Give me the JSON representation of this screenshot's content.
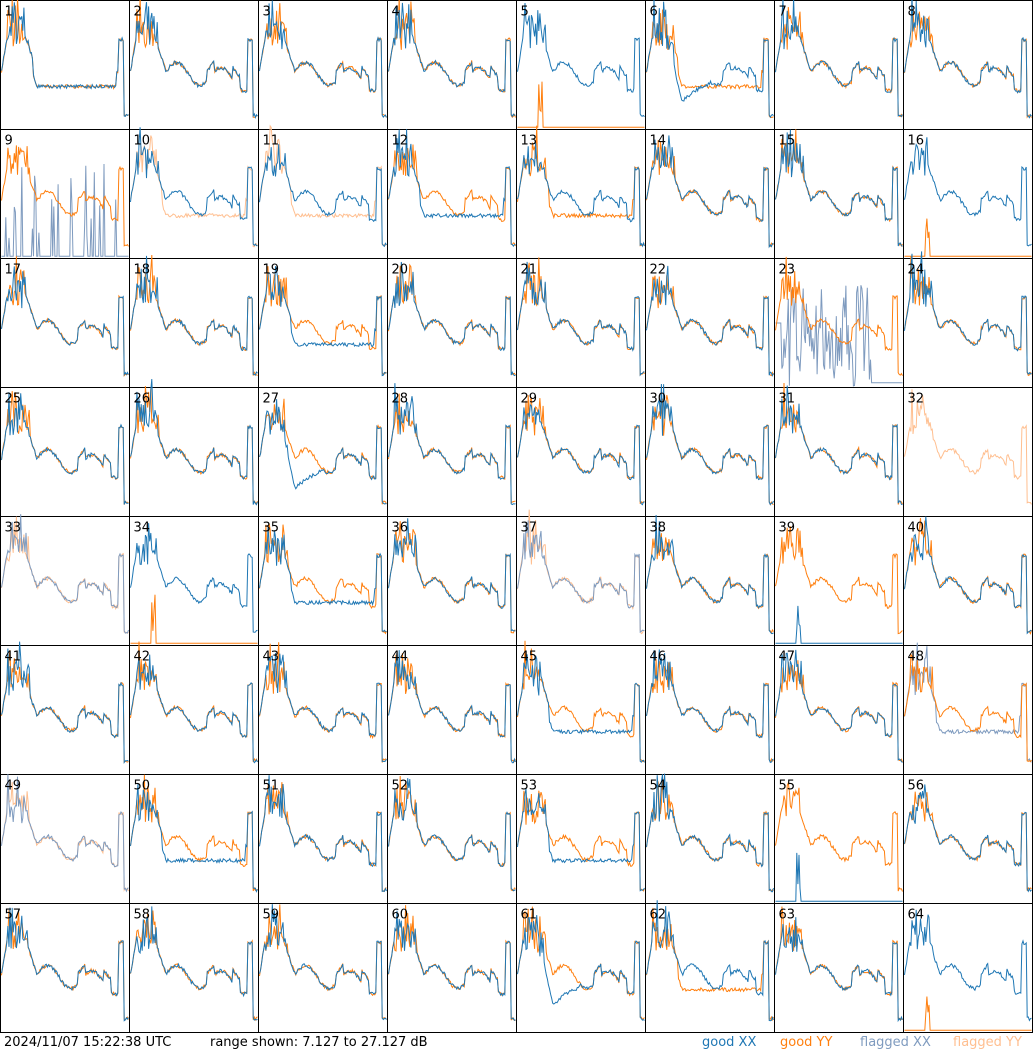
{
  "footer": {
    "timestamp": "2024/11/07 15:22:38 UTC",
    "range_text": "range shown: 7.127 to 27.127 dB",
    "legend": {
      "good_xx": "good XX",
      "good_yy": "good YY",
      "flagged_xx": "flagged XX",
      "flagged_yy": "flagged YY"
    }
  },
  "colors": {
    "good_xx": "#1f77b4",
    "good_yy": "#ff7f0e",
    "flagged_xx": "#7f9bbf",
    "flagged_yy": "#ffbf90"
  },
  "chart_data": {
    "type": "line",
    "grid_columns": 8,
    "grid_rows": 8,
    "y_range_db": [
      7.127,
      27.127
    ],
    "panels": [
      {
        "label": "1",
        "xx": "low",
        "yy": "low"
      },
      {
        "label": "2",
        "xx": "good",
        "yy": "good"
      },
      {
        "label": "3",
        "xx": "good",
        "yy": "good"
      },
      {
        "label": "4",
        "xx": "good",
        "yy": "good"
      },
      {
        "label": "5",
        "xx": "good",
        "yy": "dead"
      },
      {
        "label": "6",
        "xx": "deep",
        "yy": "low"
      },
      {
        "label": "7",
        "xx": "good",
        "yy": "good"
      },
      {
        "label": "8",
        "xx": "good",
        "yy": "good"
      },
      {
        "label": "9",
        "xx": "flagged_spikes",
        "yy": "good"
      },
      {
        "label": "10",
        "xx": "good",
        "yy": "flagged_low"
      },
      {
        "label": "11",
        "xx": "good",
        "yy": "flagged_low"
      },
      {
        "label": "12",
        "xx": "low",
        "yy": "good"
      },
      {
        "label": "13",
        "xx": "good",
        "yy": "low"
      },
      {
        "label": "14",
        "xx": "good",
        "yy": "good"
      },
      {
        "label": "15",
        "xx": "good",
        "yy": "good"
      },
      {
        "label": "16",
        "xx": "good",
        "yy": "dead"
      },
      {
        "label": "17",
        "xx": "good",
        "yy": "good"
      },
      {
        "label": "18",
        "xx": "good",
        "yy": "good"
      },
      {
        "label": "19",
        "xx": "low",
        "yy": "good"
      },
      {
        "label": "20",
        "xx": "good",
        "yy": "good"
      },
      {
        "label": "21",
        "xx": "good",
        "yy": "good"
      },
      {
        "label": "22",
        "xx": "good",
        "yy": "good"
      },
      {
        "label": "23",
        "xx": "flagged_noise",
        "yy": "good"
      },
      {
        "label": "24",
        "xx": "good",
        "yy": "good"
      },
      {
        "label": "25",
        "xx": "good",
        "yy": "good"
      },
      {
        "label": "26",
        "xx": "good",
        "yy": "good"
      },
      {
        "label": "27",
        "xx": "deep",
        "yy": "good"
      },
      {
        "label": "28",
        "xx": "good",
        "yy": "good"
      },
      {
        "label": "29",
        "xx": "good",
        "yy": "good"
      },
      {
        "label": "30",
        "xx": "good",
        "yy": "good"
      },
      {
        "label": "31",
        "xx": "good",
        "yy": "good"
      },
      {
        "label": "32",
        "xx": "none",
        "yy": "flagged_good"
      },
      {
        "label": "33",
        "xx": "flagged_good",
        "yy": "flagged_good"
      },
      {
        "label": "34",
        "xx": "good",
        "yy": "dead"
      },
      {
        "label": "35",
        "xx": "low",
        "yy": "good"
      },
      {
        "label": "36",
        "xx": "good",
        "yy": "good"
      },
      {
        "label": "37",
        "xx": "flagged_good",
        "yy": "flagged_good"
      },
      {
        "label": "38",
        "xx": "good",
        "yy": "good"
      },
      {
        "label": "39",
        "xx": "dead",
        "yy": "good"
      },
      {
        "label": "40",
        "xx": "good",
        "yy": "good"
      },
      {
        "label": "41",
        "xx": "good",
        "yy": "good"
      },
      {
        "label": "42",
        "xx": "good",
        "yy": "good"
      },
      {
        "label": "43",
        "xx": "good",
        "yy": "good"
      },
      {
        "label": "44",
        "xx": "good",
        "yy": "good"
      },
      {
        "label": "45",
        "xx": "low",
        "yy": "good"
      },
      {
        "label": "46",
        "xx": "good",
        "yy": "good"
      },
      {
        "label": "47",
        "xx": "good",
        "yy": "good"
      },
      {
        "label": "48",
        "xx": "flagged_low",
        "yy": "good"
      },
      {
        "label": "49",
        "xx": "flagged_good",
        "yy": "flagged_good"
      },
      {
        "label": "50",
        "xx": "low",
        "yy": "good"
      },
      {
        "label": "51",
        "xx": "good",
        "yy": "good"
      },
      {
        "label": "52",
        "xx": "good",
        "yy": "good"
      },
      {
        "label": "53",
        "xx": "low",
        "yy": "good"
      },
      {
        "label": "54",
        "xx": "good",
        "yy": "good"
      },
      {
        "label": "55",
        "xx": "dead",
        "yy": "good"
      },
      {
        "label": "56",
        "xx": "good",
        "yy": "good"
      },
      {
        "label": "57",
        "xx": "good",
        "yy": "good"
      },
      {
        "label": "58",
        "xx": "good",
        "yy": "good"
      },
      {
        "label": "59",
        "xx": "good",
        "yy": "good"
      },
      {
        "label": "60",
        "xx": "good",
        "yy": "good"
      },
      {
        "label": "61",
        "xx": "deep",
        "yy": "good"
      },
      {
        "label": "62",
        "xx": "good",
        "yy": "low"
      },
      {
        "label": "63",
        "xx": "good",
        "yy": "good"
      },
      {
        "label": "64",
        "xx": "good",
        "yy": "dead"
      }
    ]
  }
}
